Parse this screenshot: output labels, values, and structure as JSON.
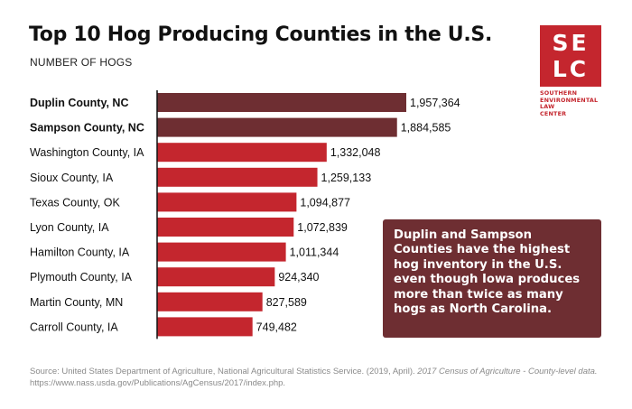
{
  "chart_data": {
    "type": "bar",
    "orientation": "horizontal",
    "title": "Top 10 Hog Producing Counties in the U.S.",
    "subtitle": "NUMBER OF HOGS",
    "categories": [
      "Duplin County, NC",
      "Sampson County, NC",
      "Washington County, IA",
      "Sioux County, IA",
      "Texas County, OK",
      "Lyon County, IA",
      "Hamilton County, IA",
      "Plymouth County, IA",
      "Martin County, MN",
      "Carroll County, IA"
    ],
    "values": [
      1957364,
      1884585,
      1332048,
      1259133,
      1094877,
      1072839,
      1011344,
      924340,
      827589,
      749482
    ],
    "value_labels": [
      "1,957,364",
      "1,884,585",
      "1,332,048",
      "1,259,133",
      "1,094,877",
      "1,072,839",
      "1,011,344",
      "924,340",
      "827,589",
      "749,482"
    ],
    "highlighted": [
      0,
      1
    ],
    "xlim": [
      0,
      1957364
    ],
    "grid": false,
    "legend": "none",
    "colors": {
      "highlight": "#6e2e32",
      "default": "#c4262e",
      "axis": "#111111"
    }
  },
  "callout": {
    "text": "Duplin and Sampson Counties have the highest hog inventory in the U.S. even though Iowa produces more than twice as many hogs as North Carolina."
  },
  "logo": {
    "line1": "SE",
    "line2": "LC",
    "caption": [
      "SOUTHERN",
      "ENVIRONMENTAL",
      "LAW",
      "CENTER"
    ],
    "color": "#c4262e"
  },
  "source": {
    "prefix": "Source: United States Department of Agriculture, National Agricultural Statistics Service. (2019, April). ",
    "italic": "2017 Census of Agriculture - County-level data.",
    "url": "https://www.nass.usda.gov/Publications/AgCensus/2017/index.php."
  }
}
